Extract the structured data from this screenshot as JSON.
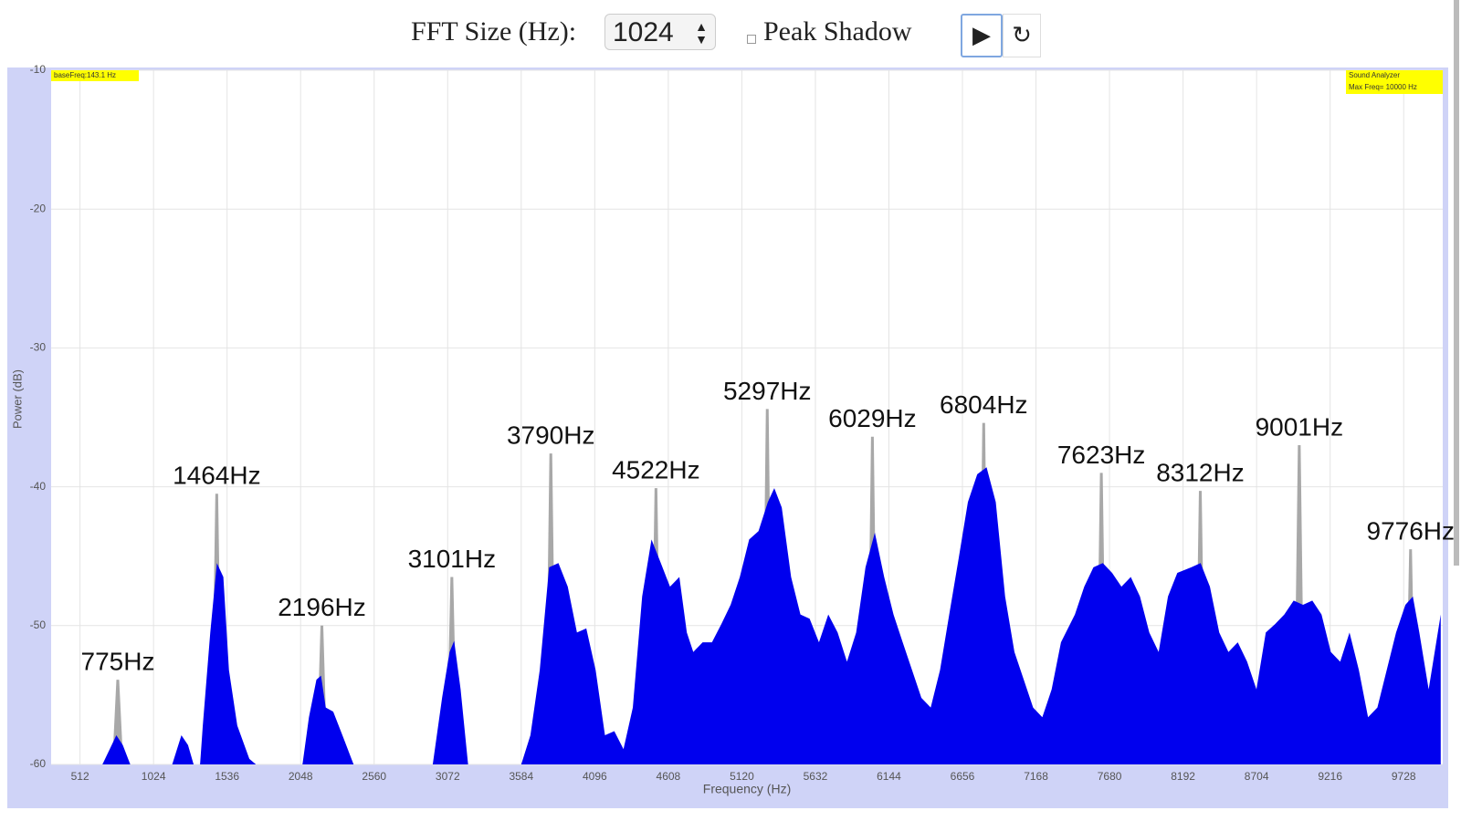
{
  "controls": {
    "fft_label": "FFT Size (Hz):",
    "fft_value": "1024",
    "shadow_label": "Peak Shadow"
  },
  "chart_data": {
    "type": "area",
    "xlabel": "Frequency (Hz)",
    "ylabel": "Power (dB)",
    "info_left": "baseFreq:143.1 Hz",
    "info_right": [
      "Sound Analyzer",
      "Max Freq= 10000 Hz"
    ],
    "color": "#0000ee",
    "shadow_color": "#a8a8a8",
    "grid": true,
    "peak_shadow": true,
    "xlim": [
      311,
      10000
    ],
    "ylim": [
      -60,
      -10
    ],
    "xticks": [
      512,
      1024,
      1536,
      2048,
      2560,
      3072,
      3584,
      4096,
      4608,
      5120,
      5632,
      6144,
      6656,
      7168,
      7680,
      8192,
      8704,
      9216,
      9728
    ],
    "yticks": [
      -60,
      -50,
      -40,
      -30,
      -20,
      -10
    ],
    "x": [
      311,
      668,
      719,
      765,
      810,
      862,
      1154,
      1218,
      1264,
      1303,
      1348,
      1367,
      1419,
      1465,
      1510,
      1549,
      1607,
      1691,
      1737,
      2061,
      2106,
      2158,
      2190,
      2223,
      2275,
      2339,
      2417,
      2968,
      3033,
      3085,
      3117,
      3162,
      3214,
      3584,
      3648,
      3713,
      3778,
      3843,
      3908,
      3972,
      4037,
      4102,
      4167,
      4232,
      4296,
      4361,
      4426,
      4491,
      4556,
      4620,
      4685,
      4737,
      4782,
      4847,
      4912,
      4977,
      5042,
      5106,
      5171,
      5236,
      5301,
      5346,
      5398,
      5463,
      5528,
      5592,
      5657,
      5722,
      5787,
      5852,
      5916,
      5981,
      6046,
      6111,
      6176,
      6240,
      6305,
      6370,
      6435,
      6500,
      6564,
      6629,
      6694,
      6759,
      6824,
      6888,
      6953,
      7018,
      7083,
      7148,
      7212,
      7277,
      7342,
      7439,
      7504,
      7568,
      7633,
      7698,
      7763,
      7828,
      7892,
      7957,
      8022,
      8087,
      8152,
      8249,
      8314,
      8379,
      8444,
      8508,
      8573,
      8638,
      8703,
      8768,
      8832,
      8897,
      8962,
      9027,
      9092,
      9156,
      9221,
      9286,
      9351,
      9416,
      9480,
      9545,
      9610,
      9675,
      9740,
      9792,
      9837,
      9902,
      9986
    ],
    "values": [
      -60,
      -60,
      -58.9,
      -57.9,
      -58.6,
      -60,
      -60,
      -57.9,
      -58.6,
      -60,
      -60,
      -57.2,
      -50.5,
      -45.5,
      -46.5,
      -53.2,
      -57.2,
      -59.6,
      -60,
      -60,
      -56.6,
      -53.9,
      -53.6,
      -55.9,
      -56.2,
      -57.9,
      -60,
      -60,
      -55.2,
      -51.9,
      -51.1,
      -54.6,
      -60,
      -60,
      -57.9,
      -53.2,
      -45.8,
      -45.5,
      -47.2,
      -50.5,
      -50.2,
      -53.2,
      -57.9,
      -57.6,
      -58.9,
      -55.9,
      -47.9,
      -43.8,
      -45.5,
      -47.2,
      -46.5,
      -50.5,
      -51.9,
      -51.2,
      -51.2,
      -49.9,
      -48.5,
      -46.5,
      -43.8,
      -43.2,
      -41.1,
      -40.1,
      -41.5,
      -46.5,
      -49.2,
      -49.5,
      -51.2,
      -49.2,
      -50.5,
      -52.6,
      -50.5,
      -45.8,
      -43.3,
      -46.5,
      -49.2,
      -51.2,
      -53.2,
      -55.2,
      -55.9,
      -53.2,
      -49.2,
      -45.2,
      -41.1,
      -39.1,
      -38.6,
      -41.1,
      -47.9,
      -51.9,
      -53.9,
      -55.9,
      -56.6,
      -54.6,
      -51.2,
      -49.2,
      -47.2,
      -45.8,
      -45.5,
      -46.2,
      -47.2,
      -46.5,
      -47.9,
      -50.5,
      -51.9,
      -47.9,
      -46.2,
      -45.8,
      -45.5,
      -47.2,
      -50.5,
      -51.9,
      -51.2,
      -52.6,
      -54.6,
      -50.5,
      -49.9,
      -49.2,
      -48.2,
      -48.5,
      -48.2,
      -49.2,
      -51.9,
      -52.6,
      -50.5,
      -53.2,
      -56.6,
      -55.9,
      -53.2,
      -50.5,
      -48.5,
      -47.9,
      -50.5,
      -54.6,
      -49.2
    ],
    "peaks": [
      {
        "x": 775,
        "y": -53.9,
        "text": "775Hz"
      },
      {
        "x": 1464,
        "y": -40.5,
        "text": "1464Hz"
      },
      {
        "x": 2196,
        "y": -50,
        "text": "2196Hz"
      },
      {
        "x": 3101,
        "y": -46.5,
        "text": "3101Hz"
      },
      {
        "x": 3790,
        "y": -37.6,
        "text": "3790Hz"
      },
      {
        "x": 4522,
        "y": -40.1,
        "text": "4522Hz"
      },
      {
        "x": 5297,
        "y": -34.4,
        "text": "5297Hz"
      },
      {
        "x": 6029,
        "y": -36.4,
        "text": "6029Hz"
      },
      {
        "x": 6804,
        "y": -35.4,
        "text": "6804Hz"
      },
      {
        "x": 7623,
        "y": -39,
        "text": "7623Hz"
      },
      {
        "x": 8312,
        "y": -40.3,
        "text": "8312Hz"
      },
      {
        "x": 9001,
        "y": -37,
        "text": "9001Hz"
      },
      {
        "x": 9776,
        "y": -44.5,
        "text": "9776Hz"
      }
    ]
  }
}
